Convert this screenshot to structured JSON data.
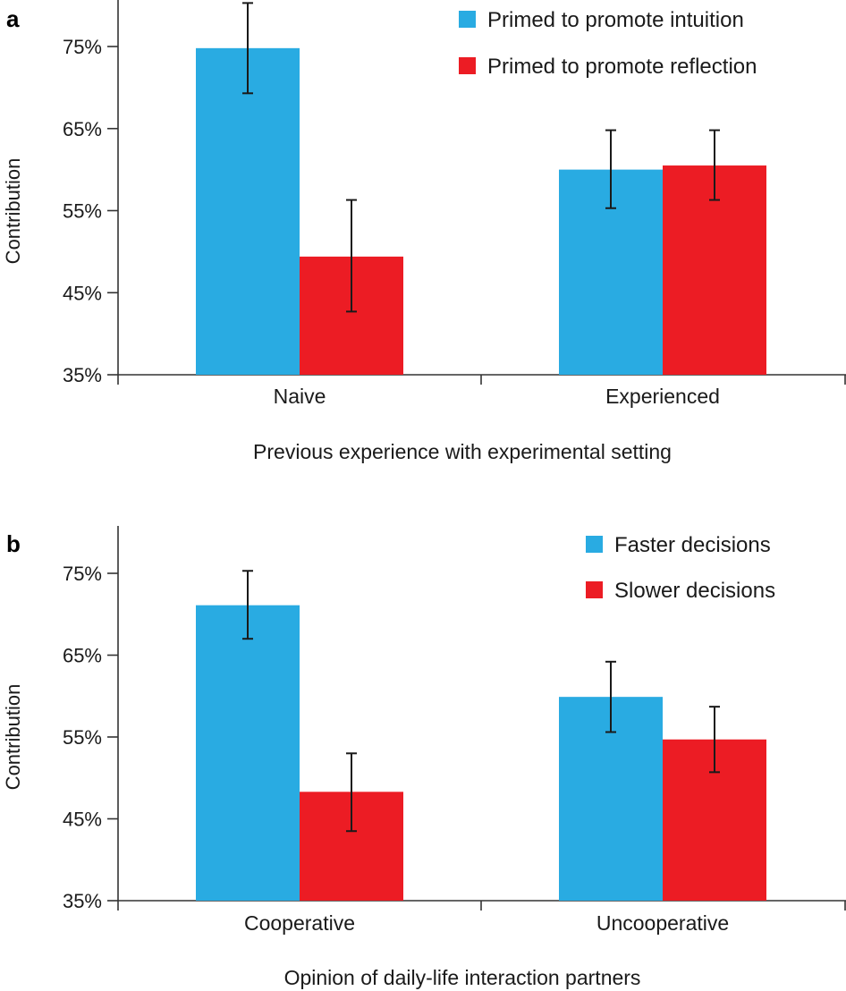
{
  "chart_data": [
    {
      "panel": "a",
      "type": "bar",
      "xlabel": "Previous experience with experimental setting",
      "ylabel": "Contribution",
      "ylim": [
        35,
        80
      ],
      "yticks": [
        35,
        45,
        55,
        65,
        75
      ],
      "ytick_labels": [
        "35%",
        "45%",
        "55%",
        "65%",
        "75%"
      ],
      "categories": [
        "Naive",
        "Experienced"
      ],
      "legend_position": "top-right",
      "series": [
        {
          "name": "Primed to promote intuition",
          "color": "#29ABE2",
          "values": [
            74.8,
            60.0
          ],
          "err_low": [
            69.3,
            55.3
          ],
          "err_high": [
            80.3,
            64.8
          ]
        },
        {
          "name": "Primed to promote reflection",
          "color": "#EC1C24",
          "values": [
            49.4,
            60.5
          ],
          "err_low": [
            42.7,
            56.3
          ],
          "err_high": [
            56.3,
            64.8
          ]
        }
      ]
    },
    {
      "panel": "b",
      "type": "bar",
      "xlabel": "Opinion of daily-life interaction partners",
      "ylabel": "Contribution",
      "ylim": [
        35,
        80
      ],
      "yticks": [
        35,
        45,
        55,
        65,
        75
      ],
      "ytick_labels": [
        "35%",
        "45%",
        "55%",
        "65%",
        "75%"
      ],
      "categories": [
        "Cooperative",
        "Uncooperative"
      ],
      "legend_position": "top-right",
      "series": [
        {
          "name": "Faster decisions",
          "color": "#29ABE2",
          "values": [
            71.1,
            59.9
          ],
          "err_low": [
            67.0,
            55.6
          ],
          "err_high": [
            75.3,
            64.2
          ]
        },
        {
          "name": "Slower decisions",
          "color": "#EC1C24",
          "values": [
            48.3,
            54.7
          ],
          "err_low": [
            43.5,
            50.7
          ],
          "err_high": [
            53.0,
            58.7
          ]
        }
      ]
    }
  ]
}
